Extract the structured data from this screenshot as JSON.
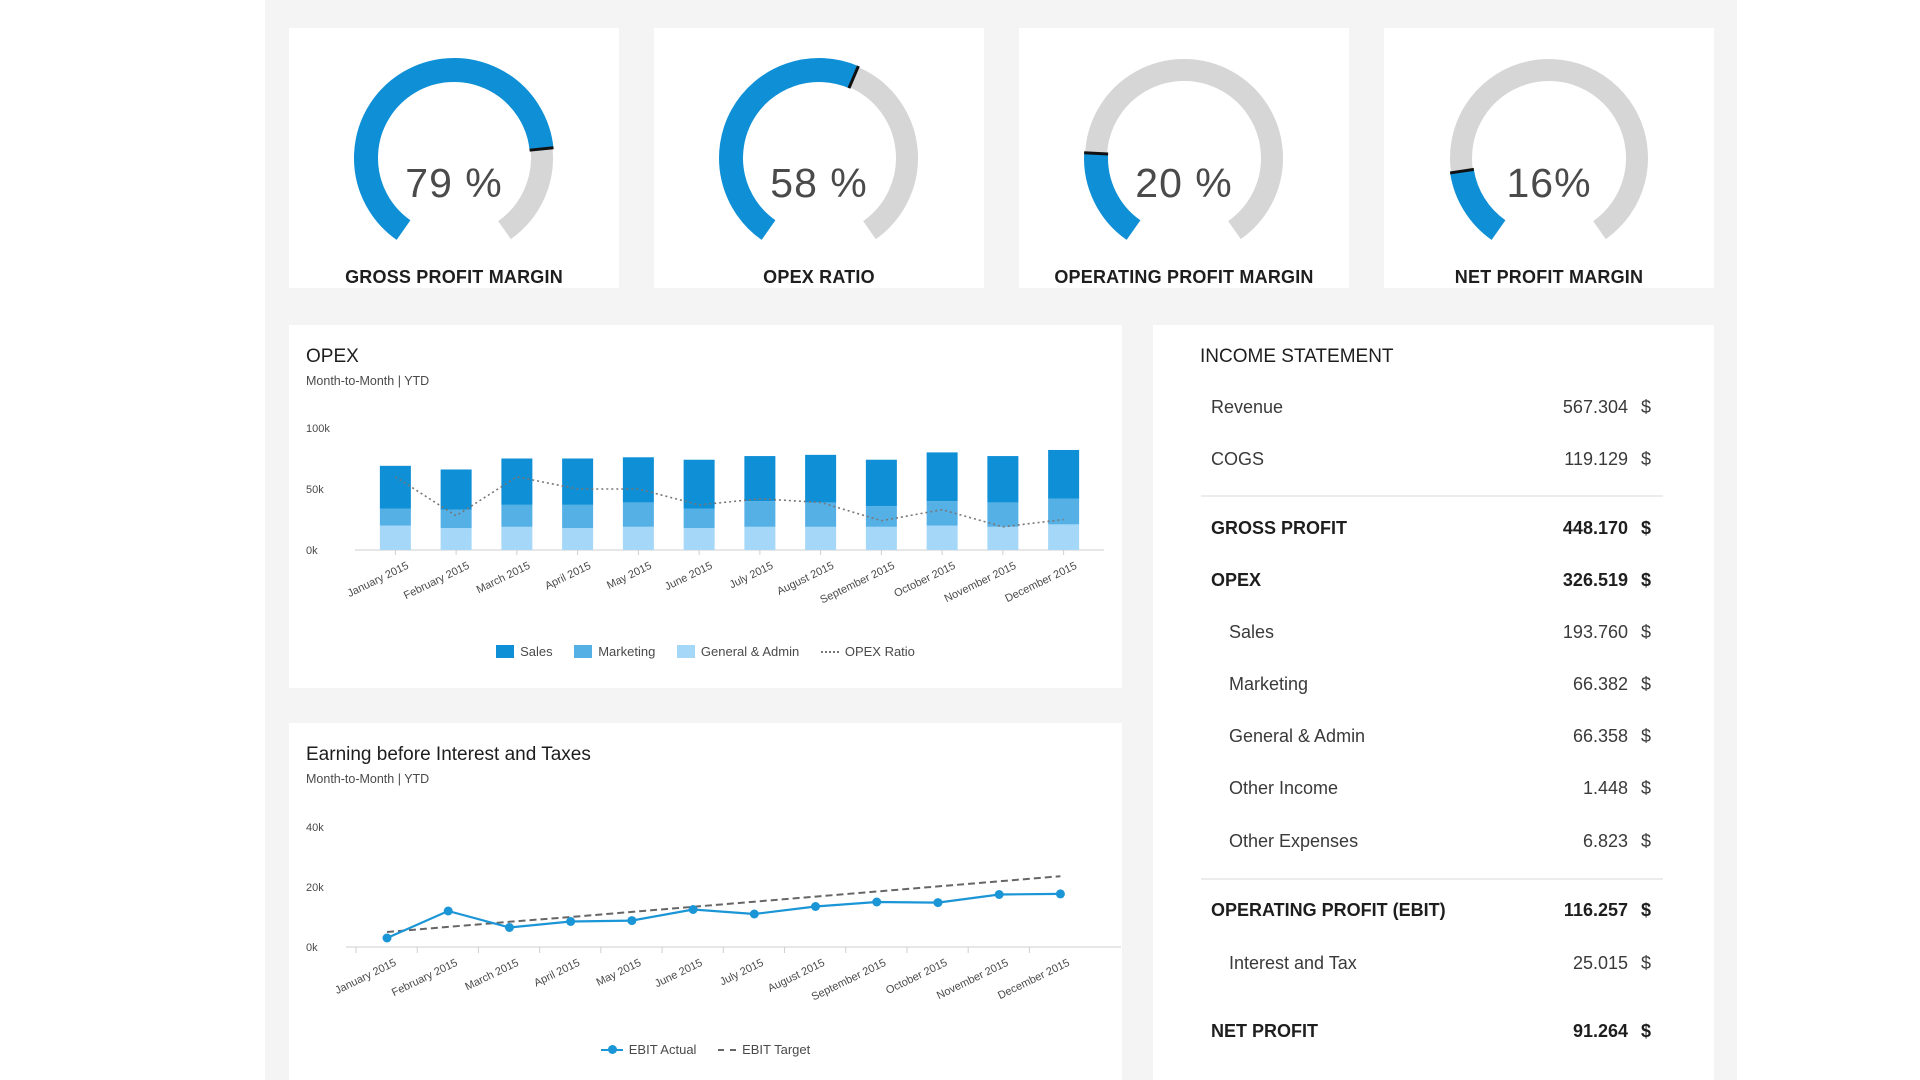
{
  "colors": {
    "accent": "#0e8fd6",
    "gauge_track": "#d6d6d6",
    "sales": "#0e8fd6",
    "marketing": "#55b0e6",
    "general_admin": "#a5d8f8",
    "ebit_actual": "#1a95d6",
    "ebit_target": "#666666"
  },
  "kpis": [
    {
      "value": "79 %",
      "label": "GROSS PROFIT MARGIN",
      "pct": 79
    },
    {
      "value": "58 %",
      "label": "OPEX RATIO",
      "pct": 58
    },
    {
      "value": "20 %",
      "label": "OPERATING PROFIT MARGIN",
      "pct": 20
    },
    {
      "value": "16%",
      "label": "NET PROFIT MARGIN",
      "pct": 16
    }
  ],
  "opex": {
    "title": "OPEX",
    "subtitle": "Month-to-Month | YTD",
    "legend": {
      "sales": "Sales",
      "marketing": "Marketing",
      "general_admin": "General & Admin",
      "ratio": "OPEX Ratio"
    }
  },
  "ebit": {
    "title": "Earning before Interest and Taxes",
    "subtitle": "Month-to-Month | YTD",
    "legend": {
      "actual": "EBIT Actual",
      "target": "EBIT Target"
    }
  },
  "chart_data": [
    {
      "type": "bar",
      "title": "OPEX",
      "subtitle": "Month-to-Month | YTD",
      "categories": [
        "January 2015",
        "February 2015",
        "March 2015",
        "April 2015",
        "May 2015",
        "June 2015",
        "July 2015",
        "August 2015",
        "September 2015",
        "October 2015",
        "November 2015",
        "December 2015"
      ],
      "y_ticks": [
        "100k",
        "50k",
        "0k"
      ],
      "ylim": [
        0,
        100000
      ],
      "stacked": true,
      "series": [
        {
          "name": "General & Admin",
          "values": [
            20000,
            18000,
            19000,
            18000,
            19000,
            18000,
            19000,
            19000,
            19000,
            20000,
            19000,
            21000
          ]
        },
        {
          "name": "Marketing",
          "values": [
            14000,
            15000,
            18000,
            19000,
            20000,
            16000,
            21000,
            20000,
            17000,
            20000,
            20000,
            21000
          ]
        },
        {
          "name": "Sales",
          "values": [
            35000,
            33000,
            38000,
            38000,
            37000,
            40000,
            37000,
            39000,
            38000,
            40000,
            38000,
            40000
          ]
        }
      ],
      "line_series": {
        "name": "OPEX Ratio",
        "values": [
          60000,
          28000,
          60000,
          50000,
          50000,
          37000,
          42000,
          39000,
          24000,
          33000,
          19000,
          25000
        ]
      },
      "legend_position": "bottom"
    },
    {
      "type": "line",
      "title": "Earning before Interest and Taxes",
      "subtitle": "Month-to-Month | YTD",
      "categories": [
        "January 2015",
        "February 2015",
        "March 2015",
        "April 2015",
        "May 2015",
        "June 2015",
        "July 2015",
        "August 2015",
        "September 2015",
        "October 2015",
        "November 2015",
        "December 2015"
      ],
      "y_ticks": [
        "40k",
        "20k",
        "0k"
      ],
      "ylim": [
        0,
        40000
      ],
      "series": [
        {
          "name": "EBIT Actual",
          "values": [
            3000,
            12000,
            6500,
            8500,
            8800,
            12500,
            11000,
            13500,
            15000,
            14800,
            17500,
            17700
          ]
        },
        {
          "name": "EBIT Target",
          "values": [
            5000,
            6700,
            8400,
            10000,
            11700,
            13400,
            15100,
            16800,
            18500,
            20200,
            21900,
            23600
          ]
        }
      ],
      "legend_position": "bottom"
    }
  ],
  "income": {
    "title": "INCOME STATEMENT",
    "rows": [
      {
        "label": "Revenue",
        "value": "567.304",
        "currency": "$"
      },
      {
        "label": "COGS",
        "value": "119.129",
        "currency": "$"
      },
      {
        "label": "GROSS PROFIT",
        "value": "448.170",
        "currency": "$"
      },
      {
        "label": "OPEX",
        "value": "326.519",
        "currency": "$"
      },
      {
        "label": "Sales",
        "value": "193.760",
        "currency": "$"
      },
      {
        "label": "Marketing",
        "value": "66.382",
        "currency": "$"
      },
      {
        "label": "General & Admin",
        "value": "66.358",
        "currency": "$"
      },
      {
        "label": "Other Income",
        "value": "1.448",
        "currency": "$"
      },
      {
        "label": "Other Expenses",
        "value": "6.823",
        "currency": "$"
      },
      {
        "label": "OPERATING PROFIT (EBIT)",
        "value": "116.257",
        "currency": "$"
      },
      {
        "label": "Interest and Tax",
        "value": "25.015",
        "currency": "$"
      },
      {
        "label": "NET PROFIT",
        "value": "91.264",
        "currency": "$"
      }
    ]
  }
}
